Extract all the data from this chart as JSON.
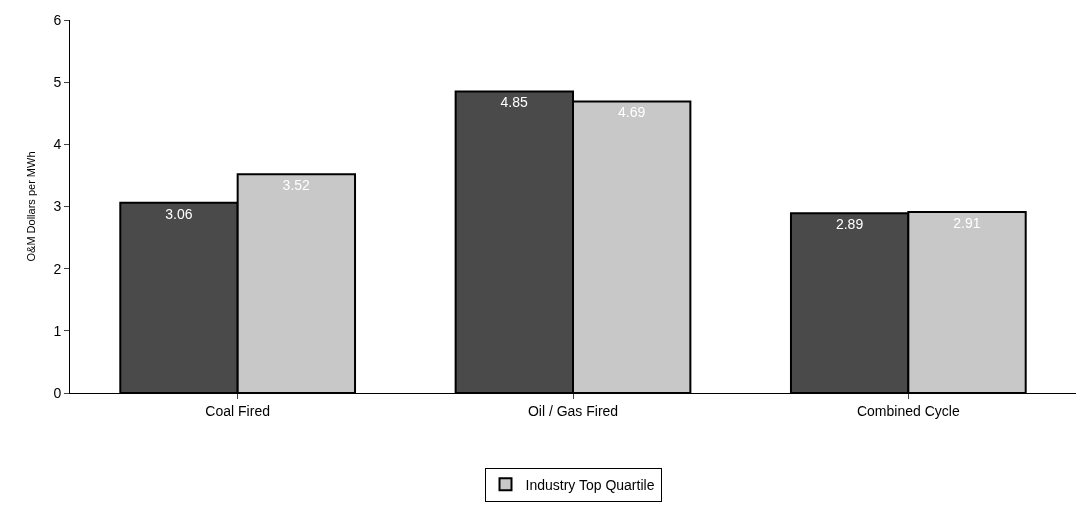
{
  "chart_data": {
    "type": "bar",
    "ylabel": "O&M Dollars per MWh",
    "categories": [
      "Coal Fired",
      "Oil / Gas Fired",
      "Combined Cycle"
    ],
    "series": [
      {
        "color": "#4a4a4a",
        "values": [
          3.06,
          4.85,
          2.89
        ]
      },
      {
        "name": "Industry Top Quartile",
        "color": "#c8c8c8",
        "values": [
          3.52,
          4.69,
          2.91
        ]
      }
    ],
    "ylim": [
      0,
      6
    ],
    "yticks": [
      0,
      1,
      2,
      3,
      4,
      5,
      6
    ],
    "data_labels": true,
    "legend": "bottom"
  }
}
